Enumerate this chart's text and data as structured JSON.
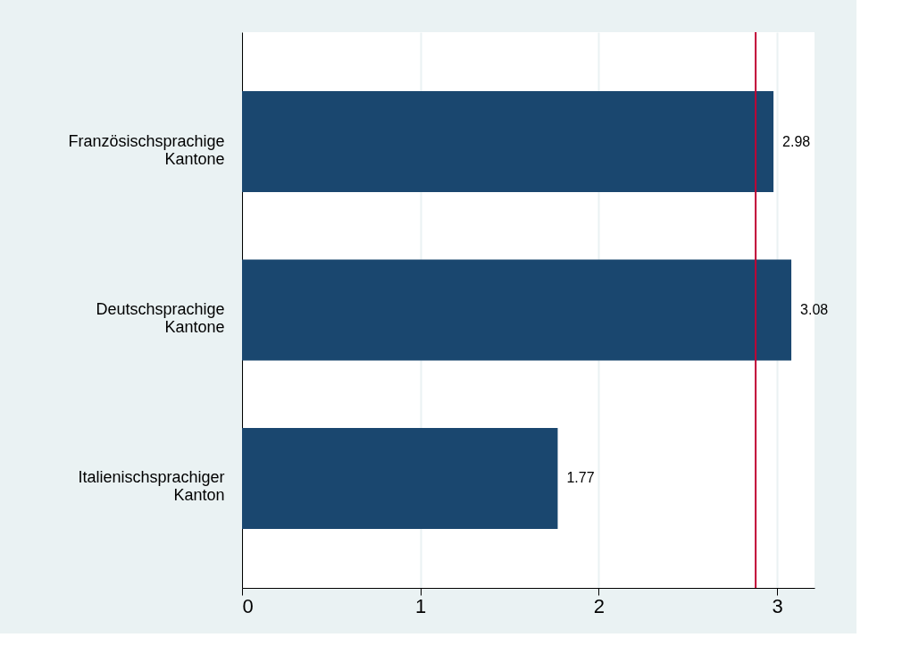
{
  "chart_data": {
    "type": "bar",
    "orientation": "horizontal",
    "categories": [
      "Französischsprachige Kantone",
      "Deutschsprachige Kantone",
      "Italienischsprachiger Kanton"
    ],
    "values": [
      2.98,
      3.08,
      1.77
    ],
    "color": "#1a476f",
    "xlim": [
      0,
      3.21
    ],
    "xticks": [
      0,
      1,
      2,
      3
    ],
    "grid": "x",
    "data_labels": true,
    "ref_lines": [
      {
        "axis": "x",
        "value": 2.88,
        "color": "#c10534"
      }
    ]
  }
}
